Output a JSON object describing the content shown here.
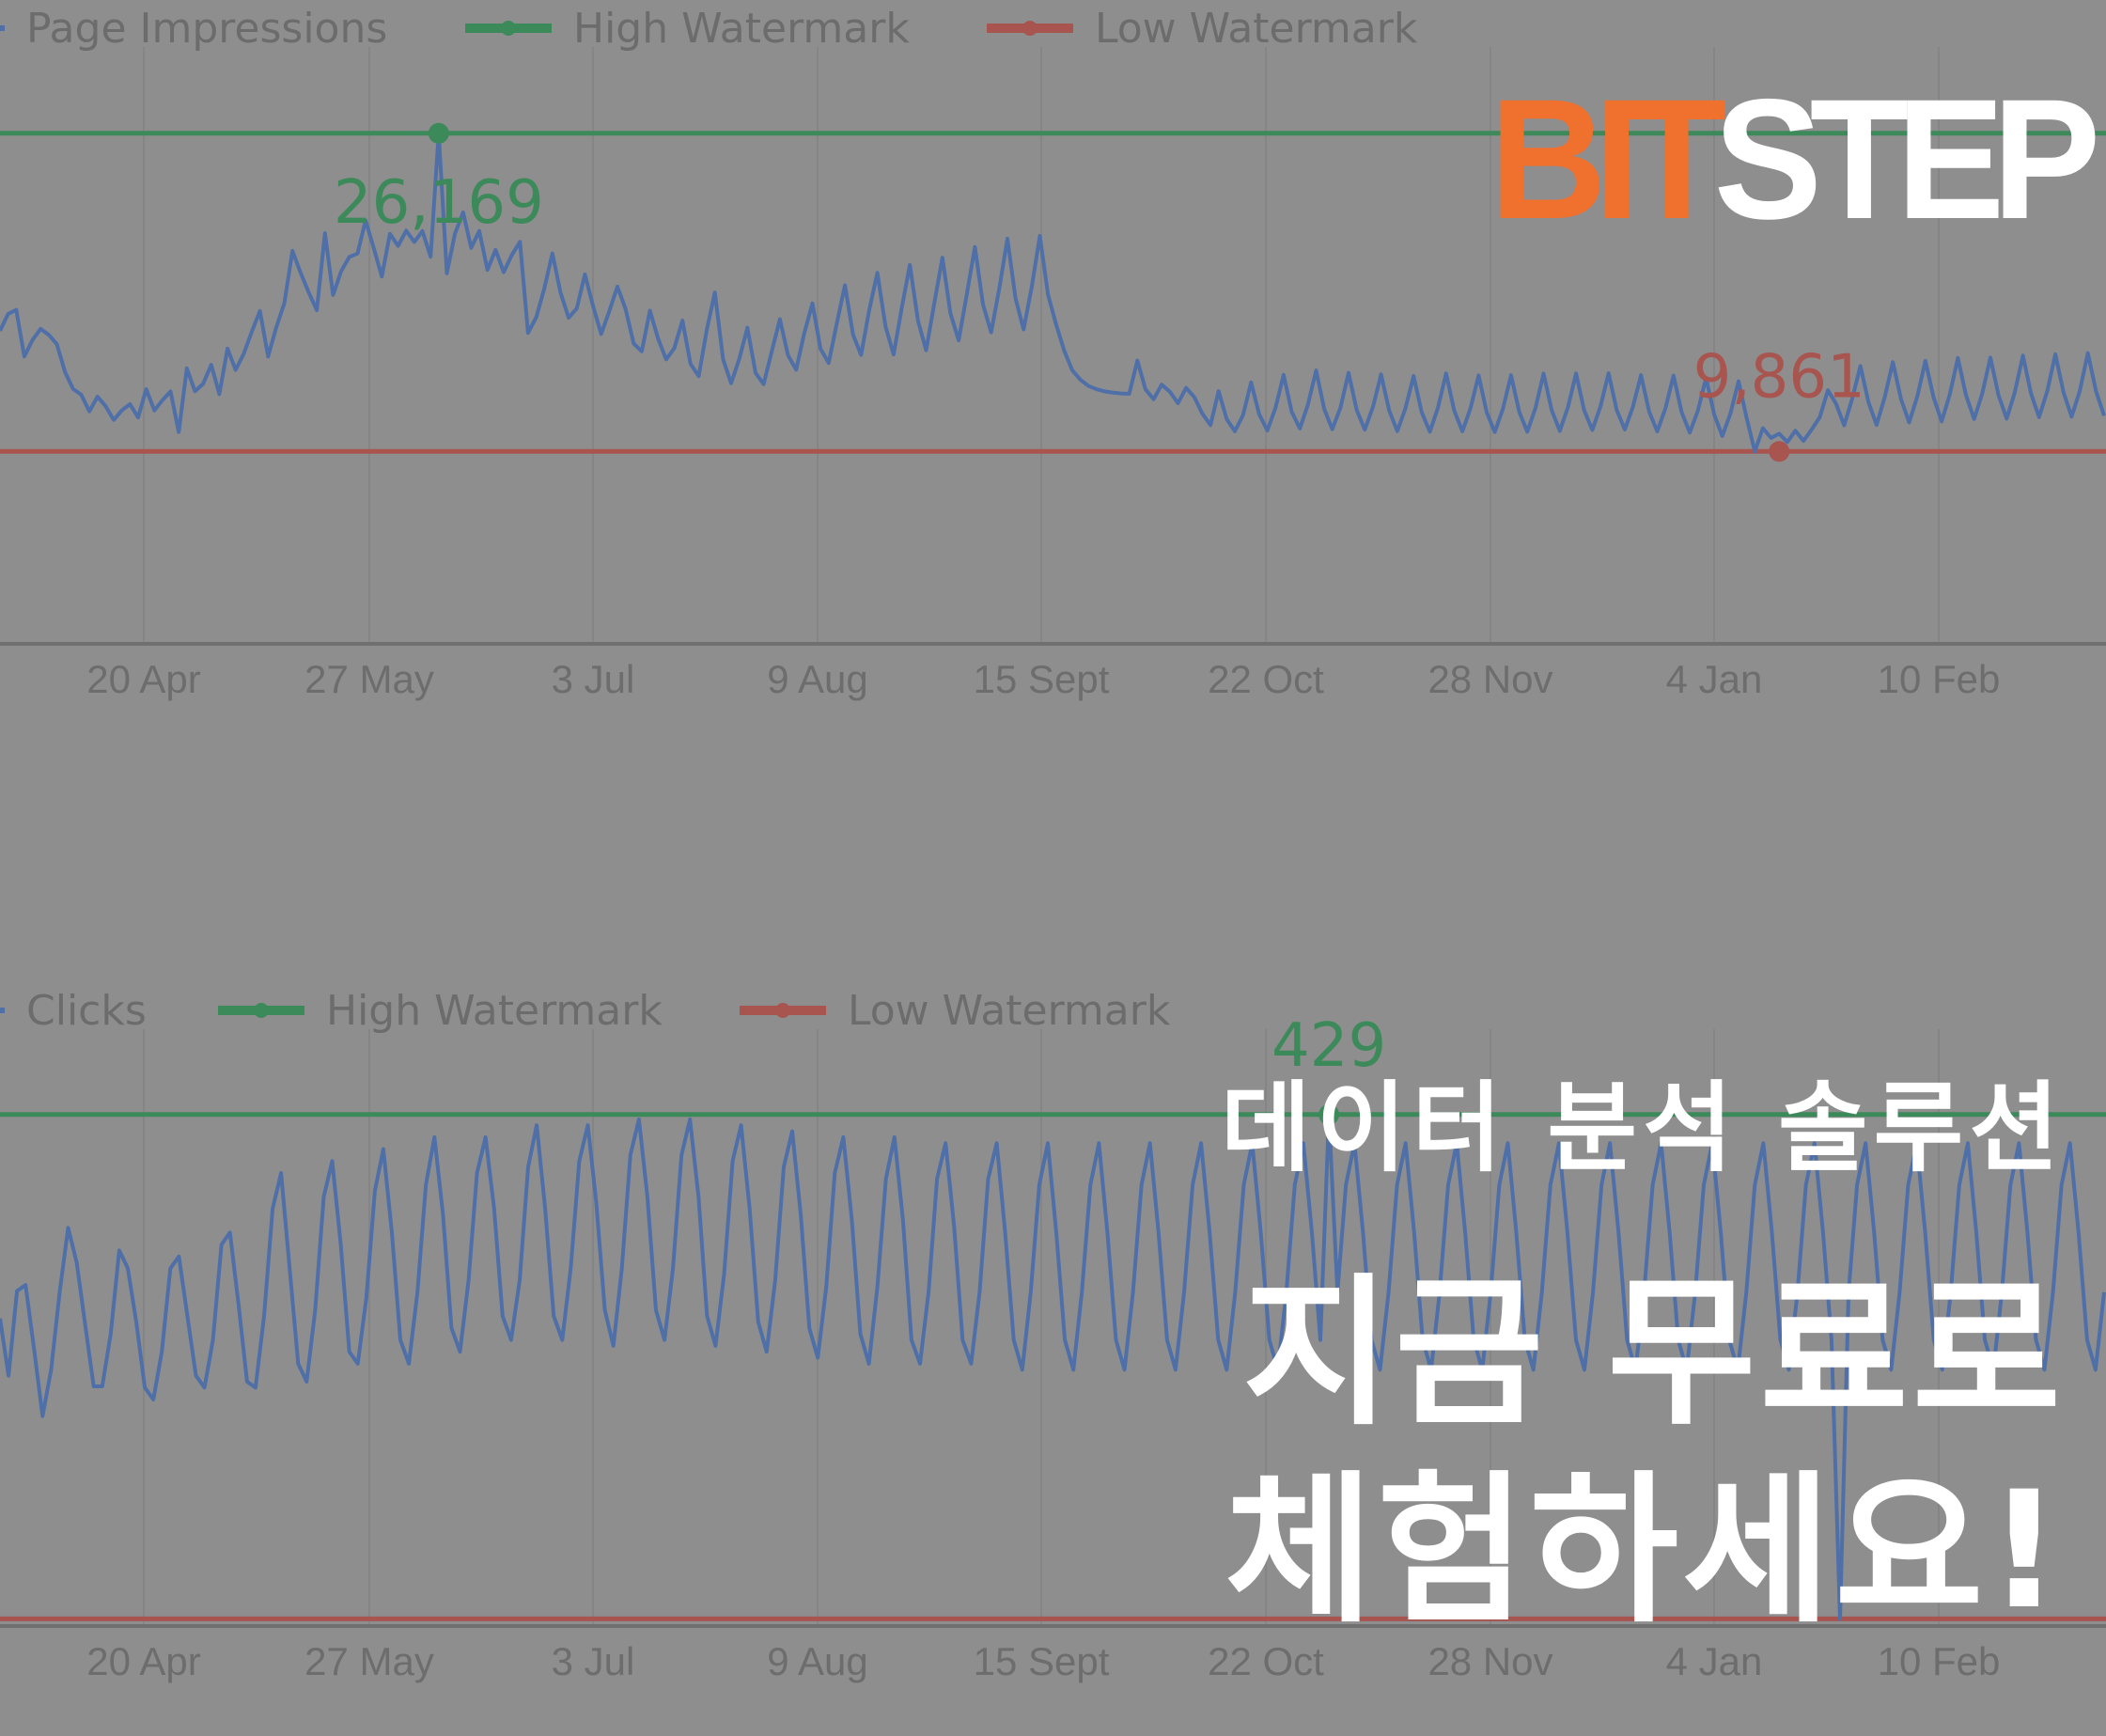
{
  "brand": {
    "part1": "BIT",
    "part2": "STEP",
    "color_part1": "#f0702e",
    "color_part2": "#ffffff"
  },
  "promo": {
    "subtitle": "데이터 분석 솔루션",
    "headline_line1": "지금 무료로",
    "headline_line2": "체험하세요!"
  },
  "colors": {
    "background": "#8e8e8e",
    "series": "#4f6fa8",
    "high": "#3c8a5a",
    "low": "#a85550",
    "grid": "#858585",
    "axis": "#707070",
    "tick_text": "#6d6d6d",
    "legend_text": "#6c6c6c"
  },
  "chart_data": [
    {
      "type": "line",
      "title": "",
      "legend": {
        "placement": "top-left",
        "entries": [
          "Page Impressions",
          "High Watermark",
          "Low Watermark"
        ]
      },
      "series_name": "Page Impressions",
      "x_tick_labels": [
        "20 Apr",
        "27 May",
        "3 Jul",
        "9 Aug",
        "15 Sept",
        "22 Oct",
        "28 Nov",
        "4 Jan",
        "10 Feb"
      ],
      "ylim": [
        0,
        33000
      ],
      "high_watermark": 26169,
      "low_watermark": 9861,
      "annotations": [
        {
          "label": "26,169",
          "value": 26169,
          "point_index": 54,
          "kind": "high"
        },
        {
          "label": "9,861",
          "value": 9861,
          "point_index": 219,
          "kind": "low"
        }
      ],
      "values": [
        16044,
        16910,
        17123,
        14728,
        15574,
        16142,
        15839,
        15356,
        13931,
        13059,
        12770,
        11915,
        12664,
        12183,
        11474,
        11968,
        12283,
        11602,
        13052,
        11962,
        12493,
        12935,
        10854,
        14118,
        12945,
        13325,
        14305,
        12800,
        15134,
        14044,
        14855,
        16007,
        17064,
        14728,
        16210,
        17464,
        20142,
        19015,
        18011,
        17104,
        21046,
        17885,
        19108,
        19828,
        20001,
        21698,
        20287,
        18825,
        21015,
        20398,
        21178,
        20599,
        21158,
        19837,
        26169,
        18997,
        21021,
        22111,
        20296,
        21163,
        19163,
        20196,
        19051,
        19924,
        20604,
        15934,
        16736,
        18209,
        20010,
        17993,
        16710,
        17195,
        18938,
        17307,
        15882,
        17059,
        18312,
        17171,
        15391,
        14993,
        17079,
        15652,
        14577,
        15149,
        16566,
        14346,
        13722,
        16096,
        18010,
        14591,
        13357,
        14612,
        16201,
        13886,
        13311,
        15003,
        16638,
        14796,
        14046,
        15919,
        17451,
        15120,
        14394,
        16411,
        18380,
        15852,
        14811,
        17119,
        19016,
        16270,
        14830,
        17226,
        19423,
        16548,
        15051,
        17459,
        19792,
        16934,
        15557,
        17892,
        20341,
        17396,
        15964,
        18203,
        20764,
        17715,
        16115,
        18290,
        20906,
        17898,
        16368,
        15018,
        14012,
        13528,
        13216,
        13044,
        12938,
        12872,
        12835,
        12817,
        14520,
        13044,
        12538,
        13286,
        12924,
        12331,
        13120,
        12650,
        11803,
        11211,
        12954,
        11512,
        10892,
        11720,
        13398,
        11766,
        10938,
        12086,
        13788,
        11896,
        11035,
        12266,
        14013,
        12037,
        10996,
        12105,
        13888,
        11980,
        10977,
        12152,
        13811,
        11946,
        10900,
        12068,
        13726,
        11874,
        10867,
        12098,
        13859,
        11960,
        10892,
        12063,
        13760,
        11867,
        10852,
        12055,
        13770,
        11893,
        10867,
        12086,
        13855,
        11968,
        10910,
        12116,
        13859,
        11973,
        10962,
        12160,
        13872,
        11992,
        10983,
        12148,
        13775,
        11893,
        10889,
        12071,
        13748,
        11860,
        10823,
        11964,
        13628,
        11754,
        10650,
        11800,
        13457,
        11578,
        9861,
        11056,
        10549,
        10773,
        10344,
        10925,
        10402,
        10982,
        11617,
        12998,
        12310,
        11203,
        12579,
        14240,
        12377,
        11218,
        12656,
        14436,
        12540,
        11343,
        12673,
        14500,
        12638,
        11399,
        12771,
        14652,
        12749,
        11525,
        12828,
        14675,
        12748,
        11538,
        12880,
        14777,
        12828,
        11618,
        12949,
        14841,
        12891,
        11637,
        12965,
        14899,
        12948,
        11697
      ]
    },
    {
      "type": "line",
      "title": "",
      "legend": {
        "placement": "top-left",
        "entries": [
          "Clicks",
          "High Watermark",
          "Low Watermark"
        ]
      },
      "series_name": "Clicks",
      "x_tick_labels": [
        "20 Apr",
        "27 May",
        "3 Jul",
        "9 Aug",
        "15 Sept",
        "22 Oct",
        "28 Nov",
        "4 Jan",
        "10 Feb"
      ],
      "ylim": [
        0,
        540
      ],
      "high_watermark": 429,
      "low_watermark": 6,
      "annotations": [
        {
          "label": "429",
          "value": 429,
          "point_index": 156,
          "kind": "high"
        }
      ],
      "values": [
        258,
        210,
        281,
        286,
        232,
        176,
        215,
        280,
        334,
        305,
        253,
        201,
        201,
        245,
        315,
        300,
        255,
        200,
        190,
        230,
        300,
        310,
        260,
        210,
        200,
        240,
        320,
        330,
        270,
        205,
        200,
        260,
        350,
        380,
        300,
        220,
        205,
        265,
        360,
        390,
        320,
        230,
        220,
        275,
        365,
        400,
        330,
        240,
        220,
        280,
        370,
        410,
        345,
        250,
        230,
        290,
        380,
        410,
        350,
        260,
        240,
        290,
        385,
        420,
        350,
        260,
        240,
        300,
        390,
        420,
        355,
        265,
        235,
        300,
        395,
        425,
        360,
        265,
        240,
        300,
        395,
        425,
        360,
        260,
        235,
        295,
        390,
        420,
        350,
        255,
        230,
        290,
        385,
        415,
        345,
        250,
        225,
        285,
        380,
        410,
        340,
        245,
        220,
        285,
        375,
        410,
        340,
        240,
        220,
        280,
        375,
        405,
        335,
        240,
        220,
        280,
        375,
        405,
        330,
        240,
        215,
        280,
        370,
        405,
        330,
        240,
        215,
        280,
        370,
        405,
        330,
        240,
        215,
        280,
        370,
        405,
        330,
        240,
        215,
        280,
        370,
        405,
        330,
        240,
        215,
        280,
        370,
        405,
        330,
        240,
        215,
        280,
        370,
        405,
        330,
        240,
        429,
        280,
        370,
        405,
        330,
        240,
        215,
        280,
        370,
        405,
        330,
        240,
        215,
        280,
        370,
        405,
        330,
        240,
        215,
        280,
        370,
        405,
        330,
        240,
        215,
        280,
        370,
        405,
        330,
        240,
        215,
        280,
        370,
        405,
        330,
        240,
        215,
        280,
        370,
        405,
        330,
        240,
        215,
        280,
        370,
        405,
        330,
        240,
        215,
        280,
        370,
        405,
        330,
        240,
        215,
        280,
        370,
        405,
        330,
        240,
        6,
        280,
        370,
        405,
        330,
        240,
        215,
        280,
        370,
        405,
        330,
        240,
        215,
        280,
        370,
        405,
        330,
        240,
        215,
        280,
        370,
        405,
        330,
        240,
        215,
        280,
        370,
        405,
        330,
        240,
        215,
        280
      ]
    }
  ]
}
